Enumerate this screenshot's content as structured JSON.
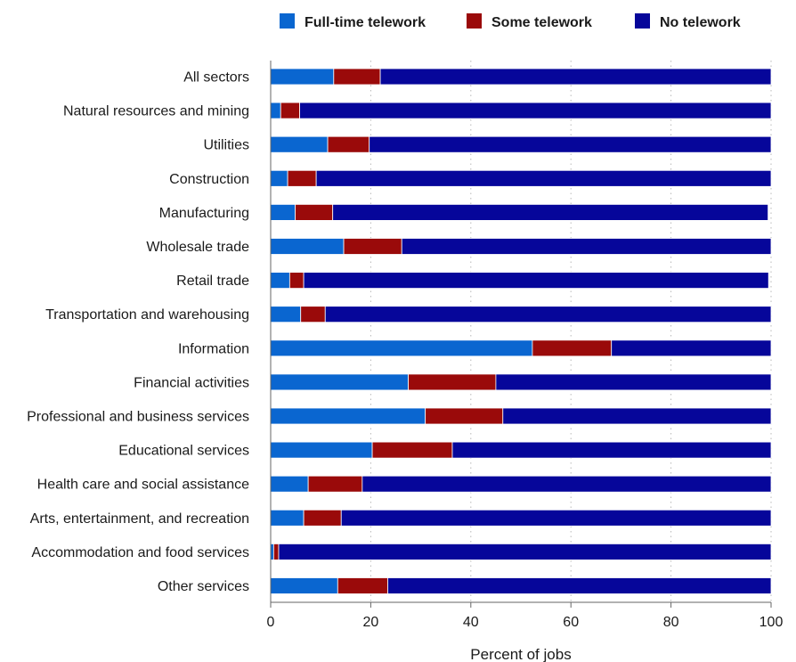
{
  "chart_data": {
    "type": "bar",
    "orientation": "horizontal",
    "stacked": true,
    "xlabel": "Percent of jobs",
    "ylabel": "",
    "xlim": [
      0,
      100
    ],
    "x_ticks": [
      0,
      20,
      40,
      60,
      80,
      100
    ],
    "grid": "vertical dotted",
    "legend_position": "top",
    "categories": [
      "All sectors",
      "Natural resources and mining",
      "Utilities",
      "Construction",
      "Manufacturing",
      "Wholesale trade",
      "Retail trade",
      "Transportation and warehousing",
      "Information",
      "Financial activities",
      "Professional and business services",
      "Educational services",
      "Health care and social assistance",
      "Arts, entertainment, and recreation",
      "Accommodation and food services",
      "Other services"
    ],
    "series": [
      {
        "name": "Full-time telework",
        "color": "#0a66d0",
        "values": [
          12.6,
          2.0,
          11.4,
          3.4,
          4.9,
          14.6,
          3.8,
          6.0,
          52.3,
          27.5,
          30.9,
          20.3,
          7.5,
          6.6,
          0.6,
          13.4
        ]
      },
      {
        "name": "Some telework",
        "color": "#9a0a0a",
        "values": [
          9.3,
          3.8,
          8.3,
          5.7,
          7.5,
          11.6,
          2.8,
          4.9,
          15.8,
          17.5,
          15.5,
          16.0,
          10.8,
          7.5,
          1.0,
          10.0
        ]
      },
      {
        "name": "No telework",
        "color": "#06069a",
        "values": [
          78.1,
          94.2,
          80.3,
          90.9,
          87.0,
          73.8,
          92.9,
          89.1,
          31.9,
          55.0,
          53.6,
          63.7,
          81.7,
          85.9,
          98.4,
          76.6
        ]
      }
    ]
  }
}
